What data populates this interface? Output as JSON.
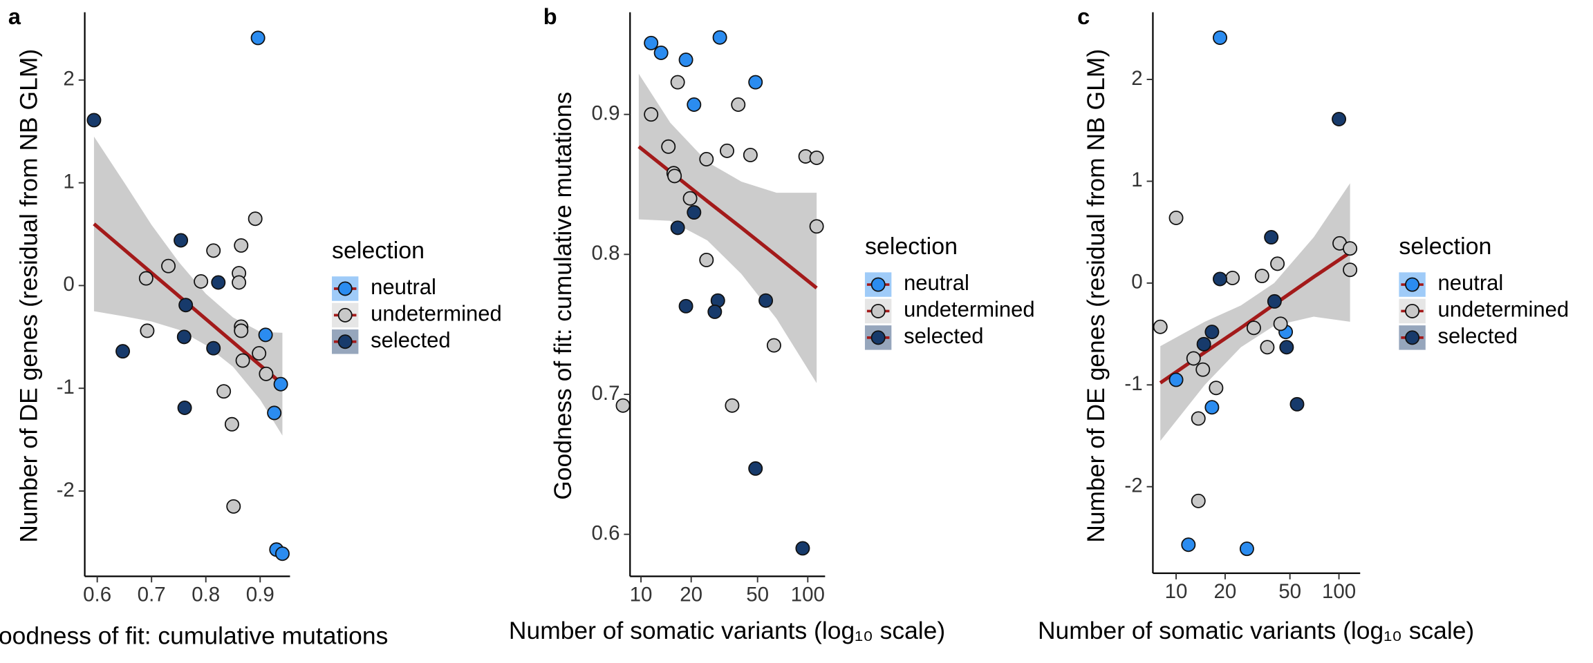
{
  "chart_data": [
    {
      "type": "scatter",
      "panel_label": "a",
      "x_label": "Goodness of fit: cumulative mutations",
      "y_label": "Number of DE genes (residual from NB GLM)",
      "xscale": "linear",
      "xlim": [
        0.577,
        0.955
      ],
      "ylim": [
        -2.83,
        2.66
      ],
      "xticks": [
        0.6,
        0.7,
        0.8,
        0.9
      ],
      "yticks": [
        -2,
        -1,
        0,
        1,
        2
      ],
      "legend_title": "selection",
      "fit_color": "#a31a1a",
      "band_color": "#cccccc",
      "series": [
        {
          "name": "neutral",
          "color": "#2b8cf0",
          "x": [
            0.896,
            0.91,
            0.938,
            0.926,
            0.93,
            0.941
          ],
          "values": [
            2.41,
            -0.48,
            -0.96,
            -1.24,
            -2.57,
            -2.61
          ]
        },
        {
          "name": "undetermined",
          "color": "#c8c8c8",
          "x": [
            0.891,
            0.865,
            0.814,
            0.731,
            0.69,
            0.791,
            0.861,
            0.861,
            0.865,
            0.865,
            0.898,
            0.868,
            0.911,
            0.833,
            0.848,
            0.851,
            0.692
          ],
          "values": [
            0.65,
            0.39,
            0.34,
            0.19,
            0.07,
            0.04,
            0.12,
            0.03,
            -0.4,
            -0.44,
            -0.66,
            -0.73,
            -0.86,
            -1.03,
            -1.35,
            -2.15,
            -0.44
          ]
        },
        {
          "name": "selected",
          "color": "#173a6b",
          "x": [
            0.594,
            0.754,
            0.823,
            0.763,
            0.76,
            0.814,
            0.647,
            0.761
          ],
          "values": [
            1.61,
            0.44,
            0.03,
            -0.19,
            -0.5,
            -0.61,
            -0.64,
            -1.19
          ]
        }
      ],
      "fit": {
        "x": [
          0.594,
          0.65,
          0.7,
          0.75,
          0.8,
          0.85,
          0.9,
          0.941
        ],
        "y": [
          0.6,
          0.348,
          0.123,
          -0.101,
          -0.326,
          -0.551,
          -0.776,
          -0.96
        ],
        "lower": [
          -0.25,
          -0.3,
          -0.35,
          -0.43,
          -0.58,
          -0.79,
          -1.11,
          -1.46
        ],
        "upper": [
          1.45,
          1.0,
          0.59,
          0.23,
          -0.08,
          -0.31,
          -0.45,
          -0.46
        ]
      }
    },
    {
      "type": "scatter",
      "panel_label": "b",
      "x_label": "Number of somatic variants (log₁₀ scale)",
      "y_label": "Goodness of fit: cumulative mutations",
      "xscale": "log",
      "xlim": [
        8.6,
        127
      ],
      "ylim": [
        0.57,
        0.973
      ],
      "xticks": [
        10,
        20,
        50,
        100
      ],
      "yticks": [
        0.6,
        0.7,
        0.8,
        0.9
      ],
      "legend_title": "selection",
      "fit_color": "#a31a1a",
      "band_color": "#cccccc",
      "series": [
        {
          "name": "neutral",
          "color": "#2b8cf0",
          "x": [
            11.5,
            13.2,
            18.6,
            29.7,
            48.6,
            20.8
          ],
          "values": [
            0.951,
            0.944,
            0.939,
            0.955,
            0.923,
            0.907
          ]
        },
        {
          "name": "undetermined",
          "color": "#c8c8c8",
          "x": [
            7.8,
            11.5,
            16.6,
            38.3,
            14.6,
            32.8,
            45.3,
            97.0,
            113,
            24.7,
            15.7,
            15.9,
            19.7,
            113,
            24.7,
            62.7,
            35.2
          ],
          "values": [
            0.692,
            0.9,
            0.923,
            0.907,
            0.877,
            0.874,
            0.871,
            0.87,
            0.869,
            0.868,
            0.858,
            0.856,
            0.84,
            0.82,
            0.796,
            0.735,
            0.692
          ]
        },
        {
          "name": "selected",
          "color": "#173a6b",
          "x": [
            20.8,
            16.6,
            28.9,
            27.7,
            18.6,
            56.0,
            48.6,
            93.2
          ],
          "values": [
            0.83,
            0.819,
            0.767,
            0.759,
            0.763,
            0.767,
            0.647,
            0.59
          ]
        }
      ],
      "fit": {
        "x": [
          9.7,
          15,
          25,
          40,
          65,
          113
        ],
        "y": [
          0.877,
          0.859,
          0.838,
          0.819,
          0.799,
          0.776
        ],
        "lower": [
          0.825,
          0.824,
          0.81,
          0.786,
          0.754,
          0.708
        ],
        "upper": [
          0.929,
          0.894,
          0.866,
          0.852,
          0.844,
          0.844
        ]
      }
    },
    {
      "type": "scatter",
      "panel_label": "c",
      "x_label": "Number of somatic variants (log₁₀ scale)",
      "y_label": "Number of DE genes (residual from NB GLM)",
      "xscale": "log",
      "xlim": [
        7.2,
        135
      ],
      "ylim": [
        -2.85,
        2.66
      ],
      "xticks": [
        10,
        20,
        50,
        100
      ],
      "yticks": [
        -2,
        -1,
        0,
        1,
        2
      ],
      "legend_title": "selection",
      "fit_color": "#a31a1a",
      "band_color": "#cccccc",
      "series": [
        {
          "name": "neutral",
          "color": "#2b8cf0",
          "x": [
            18.6,
            47.1,
            10,
            16.6,
            11.9,
            27.2
          ],
          "values": [
            2.41,
            -0.48,
            -0.95,
            -1.22,
            -2.57,
            -2.61
          ]
        },
        {
          "name": "undetermined",
          "color": "#c8c8c8",
          "x": [
            10,
            8.0,
            12.8,
            14.6,
            17.6,
            13.7,
            13.7,
            22.2,
            33.7,
            41.9,
            101,
            117,
            117,
            43.8,
            30,
            36.3
          ],
          "values": [
            0.64,
            -0.43,
            -0.74,
            -0.85,
            -1.03,
            -1.33,
            -2.14,
            0.05,
            0.07,
            0.19,
            0.39,
            0.34,
            0.13,
            -0.4,
            -0.44,
            -0.63
          ]
        },
        {
          "name": "selected",
          "color": "#173a6b",
          "x": [
            100,
            38.4,
            18.6,
            40.2,
            16.6,
            14.8,
            47.7,
            55.3
          ],
          "values": [
            1.61,
            0.45,
            0.04,
            -0.18,
            -0.48,
            -0.6,
            -0.63,
            -1.19
          ]
        }
      ],
      "fit": {
        "x": [
          8,
          15,
          25,
          40,
          70,
          117
        ],
        "y": [
          -0.98,
          -0.68,
          -0.44,
          -0.21,
          0.06,
          0.3
        ],
        "lower": [
          -1.55,
          -1.0,
          -0.63,
          -0.42,
          -0.33,
          -0.38
        ],
        "upper": [
          -0.62,
          -0.38,
          -0.22,
          0.0,
          0.45,
          0.98
        ]
      }
    }
  ]
}
